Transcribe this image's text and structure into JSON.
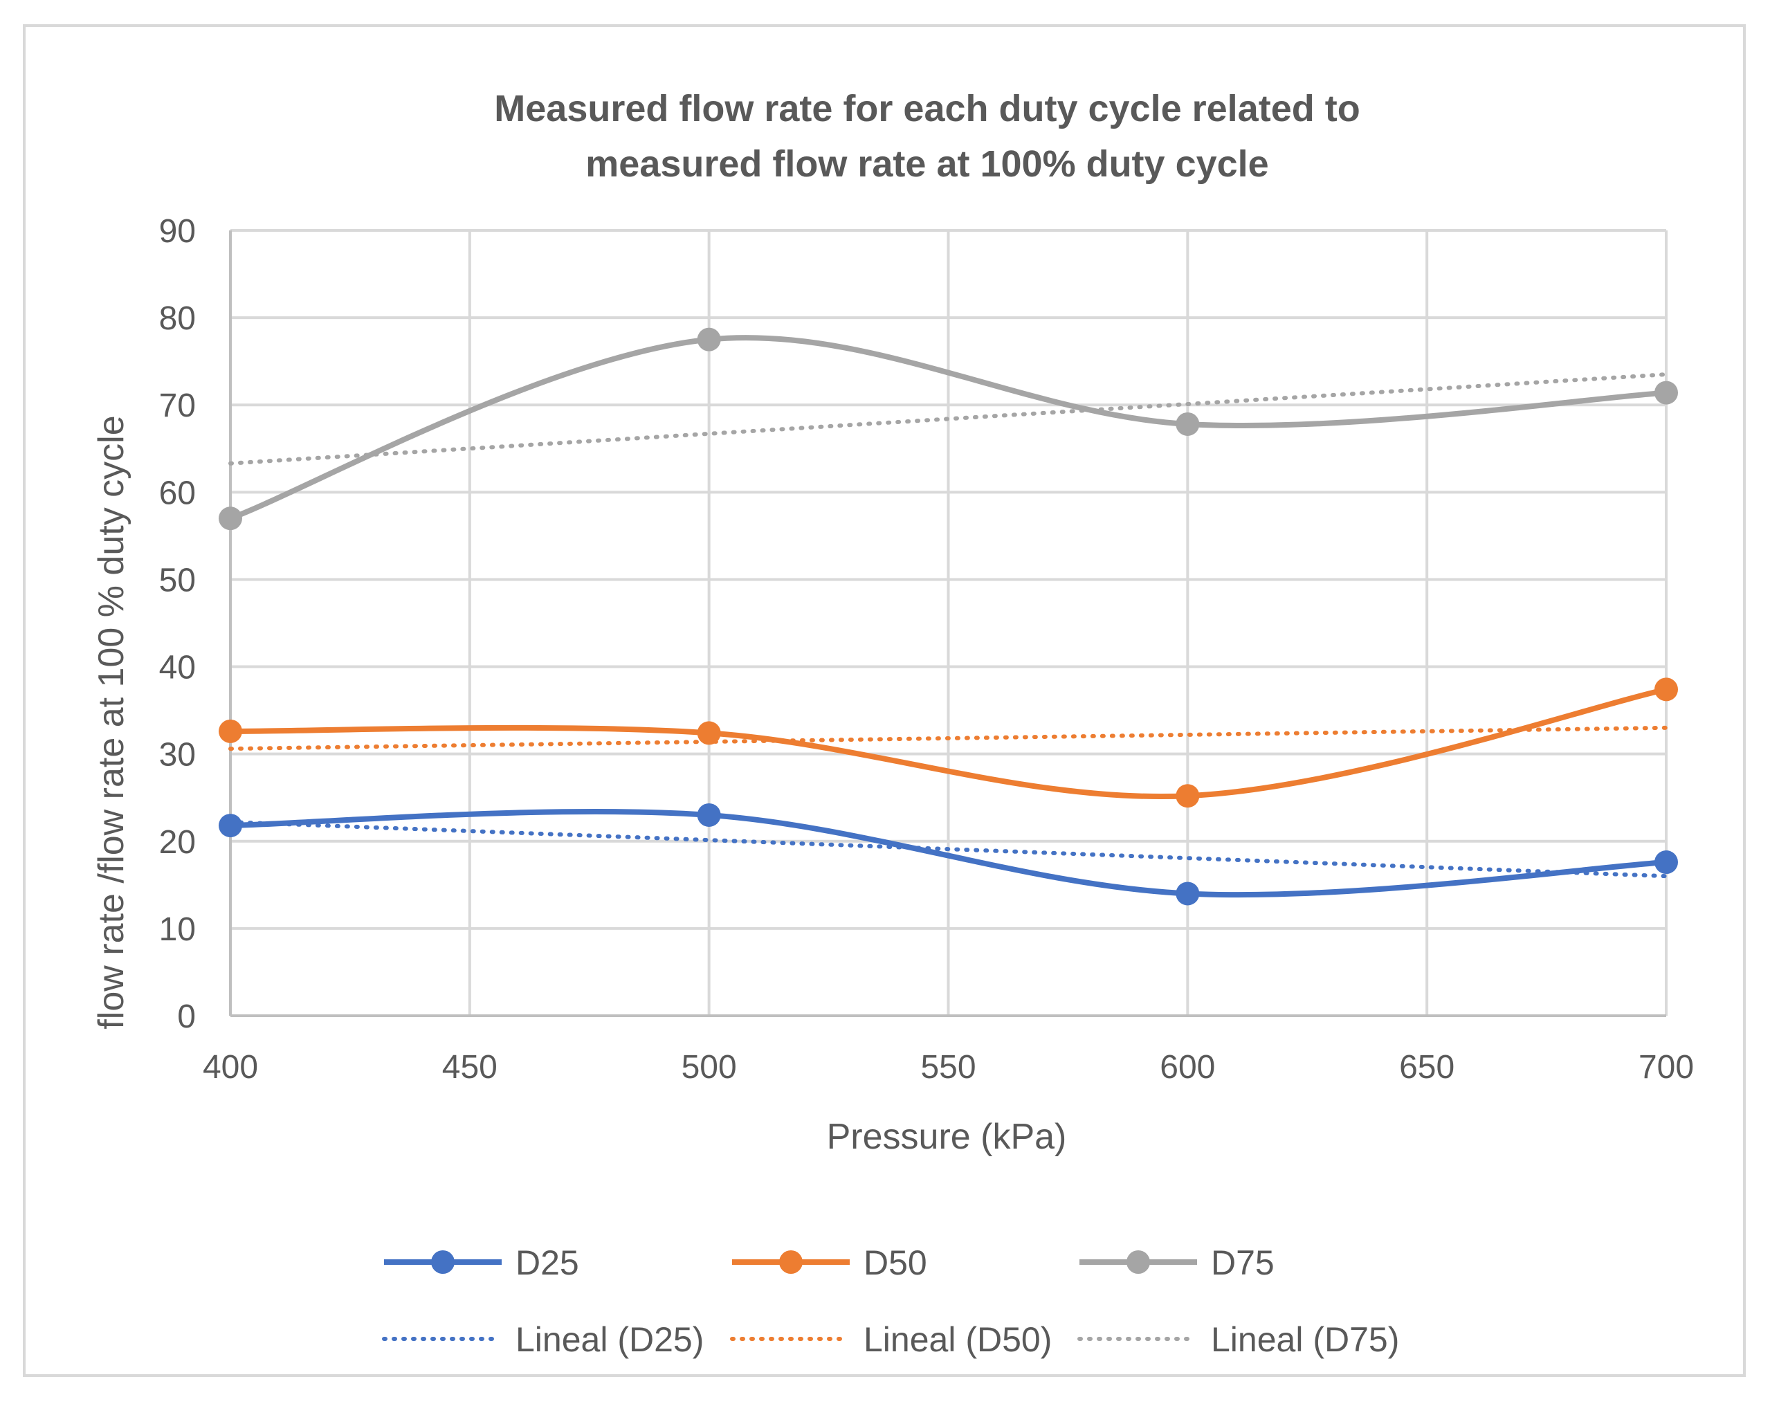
{
  "chart_data": {
    "type": "line",
    "title_lines": [
      "Measured flow rate for each duty cycle related to",
      "measured flow rate at 100% duty cycle"
    ],
    "xlabel": "Pressure (kPa)",
    "ylabel": "flow rate /flow rate at 100 % duty cycle",
    "xlim": [
      400,
      700
    ],
    "ylim": [
      0,
      90
    ],
    "x_ticks": [
      "400",
      "450",
      "500",
      "550",
      "600",
      "650",
      "700"
    ],
    "y_ticks": [
      "0",
      "10",
      "20",
      "30",
      "40",
      "50",
      "60",
      "70",
      "80",
      "90"
    ],
    "grid": true,
    "x": [
      400,
      500,
      600,
      700
    ],
    "series": [
      {
        "name": "D25",
        "color": "#4472c4",
        "values": [
          21.8,
          23.0,
          14.0,
          17.6
        ]
      },
      {
        "name": "D50",
        "color": "#ed7d31",
        "values": [
          32.6,
          32.4,
          25.2,
          37.4
        ]
      },
      {
        "name": "D75",
        "color": "#a5a5a5",
        "values": [
          57.0,
          77.5,
          67.8,
          71.4
        ]
      }
    ],
    "trendlines": [
      {
        "name": "Lineal (D25)",
        "color": "#4472c4",
        "start": [
          400,
          22.2
        ],
        "end": [
          700,
          16.0
        ]
      },
      {
        "name": "Lineal (D50)",
        "color": "#ed7d31",
        "start": [
          400,
          30.6
        ],
        "end": [
          700,
          33.0
        ]
      },
      {
        "name": "Lineal (D75)",
        "color": "#a5a5a5",
        "start": [
          400,
          63.3
        ],
        "end": [
          700,
          73.5
        ]
      }
    ],
    "legend_position": "bottom"
  }
}
